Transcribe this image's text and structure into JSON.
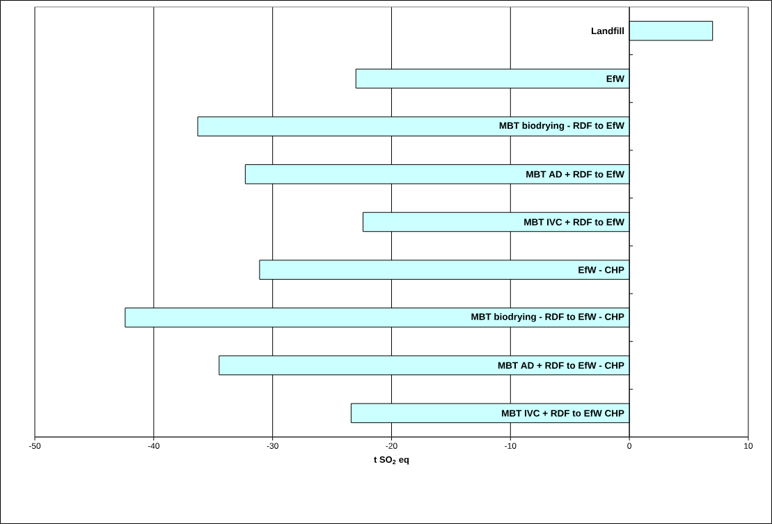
{
  "chart_data": {
    "type": "bar",
    "orientation": "horizontal",
    "xlabel": "t SO$_{2}$ eq",
    "categories": [
      "Landfill",
      "EfW",
      "MBT biodrying - RDF to EfW",
      "MBT AD + RDF to EfW",
      "MBT IVC + RDF to EfW",
      "EfW - CHP",
      "MBT biodrying - RDF to EfW - CHP",
      "MBT AD + RDF to EfW - CHP",
      "MBT IVC + RDF to EfW CHP"
    ],
    "values": [
      7.0,
      -23.0,
      -36.3,
      -32.3,
      -22.4,
      -31.1,
      -42.4,
      -34.5,
      -23.4
    ],
    "color": "#ccffff",
    "xlim": [
      -50,
      10
    ],
    "xticks": [
      -50,
      -40,
      -30,
      -20,
      -10,
      0,
      10
    ],
    "grid": "x"
  }
}
